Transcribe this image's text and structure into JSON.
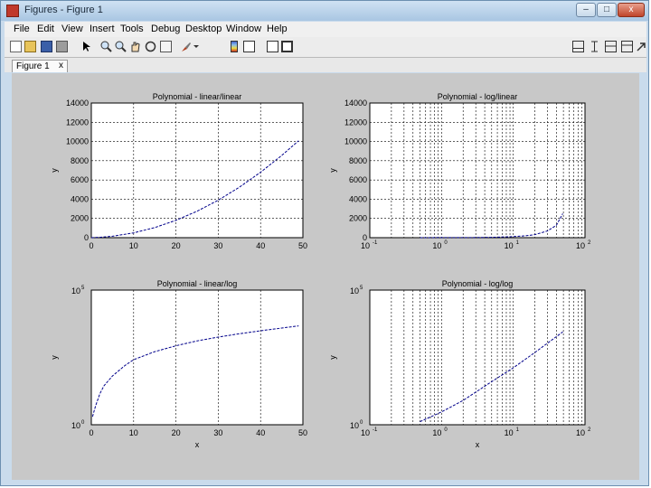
{
  "window": {
    "title": "Figures - Figure 1",
    "min": "–",
    "max": "□",
    "close": "x"
  },
  "menu": [
    "File",
    "Edit",
    "View",
    "Insert",
    "Tools",
    "Debug",
    "Desktop",
    "Window",
    "Help"
  ],
  "tab": {
    "label": "Figure 1",
    "close": "x"
  },
  "toolbar_icons": [
    "new-file-icon",
    "open-folder-icon",
    "save-icon",
    "print-icon",
    "pointer-icon",
    "zoom-in-icon",
    "zoom-out-icon",
    "pan-icon",
    "rotate-icon",
    "data-cursor-icon",
    "brush-icon",
    "colorbar-icon",
    "legend-icon",
    "hide-plot-tools-icon",
    "show-plot-tools-icon"
  ],
  "colors": {
    "line": "#00008b",
    "axes_bg": "#ffffff",
    "figure_bg": "#c8c8c8"
  },
  "chart_data": [
    {
      "type": "line",
      "title": "Polynomial - linear/linear",
      "xlabel": "",
      "ylabel": "y",
      "xscale": "linear",
      "yscale": "linear",
      "xlim": [
        0,
        50
      ],
      "ylim": [
        0,
        14000
      ],
      "grid": true,
      "xticks": [
        0,
        10,
        20,
        30,
        40,
        50
      ],
      "xticklabels": [
        "0",
        "10",
        "20",
        "30",
        "40",
        "50"
      ],
      "yticks": [
        0,
        2000,
        4000,
        6000,
        8000,
        10000,
        12000,
        14000
      ],
      "yticklabels": [
        "0",
        "2000",
        "4000",
        "6000",
        "8000",
        "10000",
        "12000",
        "14000"
      ],
      "series": [
        {
          "x": [
            0,
            2,
            5,
            10,
            15,
            20,
            25,
            30,
            35,
            40,
            45,
            49
          ],
          "y": [
            0,
            34,
            150,
            500,
            1050,
            1800,
            2750,
            3900,
            5250,
            6800,
            8550,
            10080
          ]
        }
      ]
    },
    {
      "type": "line",
      "title": "Polynomial - log/linear",
      "xlabel": "",
      "ylabel": "y",
      "xscale": "log",
      "yscale": "linear",
      "xlim": [
        0.1,
        100
      ],
      "ylim": [
        0,
        14000
      ],
      "grid": true,
      "xticks": [
        0.1,
        1,
        10,
        100
      ],
      "yticks": [
        0,
        2000,
        4000,
        6000,
        8000,
        10000,
        12000,
        14000
      ],
      "yticklabels": [
        "0",
        "2000",
        "4000",
        "6000",
        "8000",
        "10000",
        "12000",
        "14000"
      ],
      "series": [
        {
          "x": [
            0.5,
            1,
            2,
            3,
            5,
            8,
            10,
            15,
            20,
            30,
            40,
            49
          ],
          "y": [
            3.5,
            7,
            14,
            21,
            40,
            82,
            110,
            200,
            320,
            700,
            1300,
            2500
          ]
        }
      ]
    },
    {
      "type": "line",
      "title": "Polynomial - linear/log",
      "xlabel": "x",
      "ylabel": "y",
      "xscale": "linear",
      "yscale": "log",
      "xlim": [
        0,
        50
      ],
      "ylim": [
        1,
        100000
      ],
      "grid": true,
      "xticks": [
        0,
        10,
        20,
        30,
        40,
        50
      ],
      "xticklabels": [
        "0",
        "10",
        "20",
        "30",
        "40",
        "50"
      ],
      "yticks": [
        1,
        100000
      ],
      "series": [
        {
          "x": [
            0.3,
            0.6,
            1,
            2,
            3,
            5,
            8,
            10,
            15,
            20,
            25,
            30,
            35,
            40,
            45,
            49
          ],
          "y": [
            2,
            3,
            5,
            14,
            28,
            65,
            160,
            260,
            520,
            860,
            1300,
            1800,
            2400,
            3100,
            3900,
            4700
          ]
        }
      ]
    },
    {
      "type": "line",
      "title": "Polynomial - log/log",
      "xlabel": "x",
      "ylabel": "y",
      "xscale": "log",
      "yscale": "log",
      "xlim": [
        0.1,
        100
      ],
      "ylim": [
        1,
        100000
      ],
      "grid": true,
      "xticks": [
        0.1,
        1,
        10,
        100
      ],
      "yticks": [
        1,
        100000
      ],
      "series": [
        {
          "x": [
            0.5,
            1,
            2,
            5,
            10,
            20,
            49
          ],
          "y": [
            1.3,
            3,
            8,
            40,
            130,
            480,
            2800
          ]
        }
      ]
    }
  ]
}
